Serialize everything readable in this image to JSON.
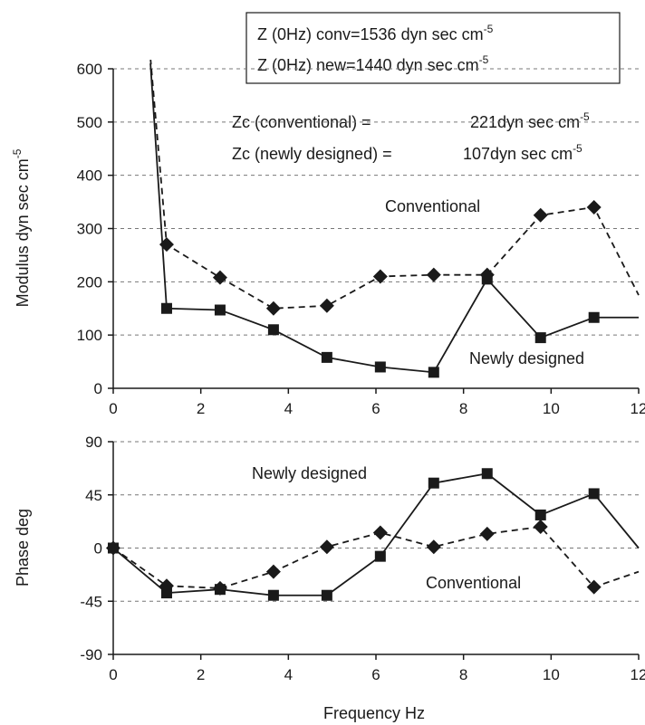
{
  "colors": {
    "ink": "#1a1a1a",
    "grid": "#777777"
  },
  "chart_data": [
    {
      "type": "line",
      "title": "",
      "xlabel": "",
      "ylabel": "Modulus dyn sec cm",
      "ylabel_sup": "-5",
      "xlim": [
        0,
        12
      ],
      "ylim": [
        0,
        600
      ],
      "xticks": [
        0,
        2,
        4,
        6,
        8,
        10,
        12
      ],
      "yticks": [
        0,
        100,
        200,
        300,
        400,
        500,
        600
      ],
      "grid": true,
      "legend_box": [
        {
          "text": "Z (0Hz) conv=1536 dyn sec cm",
          "sup": "-5"
        },
        {
          "text": "Z (0Hz) new=1440 dyn sec cm",
          "sup": "-5"
        }
      ],
      "annotations": [
        {
          "label": "Zc (conventional) =",
          "value": "221dyn sec cm",
          "sup": "-5"
        },
        {
          "label": "Zc (newly designed) =",
          "value": "107dyn sec cm",
          "sup": "-5"
        },
        {
          "text": "Conventional"
        },
        {
          "text": "Newly designed"
        }
      ],
      "series": [
        {
          "name": "Conventional",
          "style": "dashed",
          "marker": "diamond",
          "x": [
            0.85,
            1.22,
            2.44,
            3.66,
            4.88,
            6.1,
            7.32,
            8.54,
            9.76,
            10.98,
            12.0
          ],
          "y": [
            620,
            270,
            208,
            150,
            155,
            210,
            213,
            213,
            325,
            340,
            175
          ],
          "markers_at": [
            1.22,
            2.44,
            3.66,
            4.88,
            6.1,
            7.32,
            8.54,
            9.76,
            10.98
          ]
        },
        {
          "name": "Newly designed",
          "style": "solid",
          "marker": "square",
          "x": [
            0.85,
            1.22,
            2.44,
            3.66,
            4.88,
            6.1,
            7.32,
            8.54,
            9.76,
            10.98,
            12.0
          ],
          "y": [
            610,
            150,
            147,
            110,
            58,
            40,
            30,
            205,
            95,
            133,
            133
          ],
          "markers_at": [
            1.22,
            2.44,
            3.66,
            4.88,
            6.1,
            7.32,
            8.54,
            9.76,
            10.98
          ]
        }
      ]
    },
    {
      "type": "line",
      "title": "",
      "xlabel": "Frequency Hz",
      "ylabel": "Phase deg",
      "xlim": [
        0,
        12
      ],
      "ylim": [
        -90,
        90
      ],
      "xticks": [
        0,
        2,
        4,
        6,
        8,
        10,
        12
      ],
      "yticks": [
        -90,
        -45,
        0,
        45,
        90
      ],
      "grid": true,
      "annotations": [
        {
          "text": "Newly designed"
        },
        {
          "text": "Conventional"
        }
      ],
      "series": [
        {
          "name": "Newly designed",
          "style": "solid",
          "marker": "square",
          "x": [
            0,
            1.22,
            2.44,
            3.66,
            4.88,
            6.1,
            7.32,
            8.54,
            9.76,
            10.98,
            12.0
          ],
          "y": [
            0,
            -38,
            -35,
            -40,
            -40,
            -7,
            55,
            63,
            28,
            46,
            0
          ],
          "markers_at": [
            0,
            1.22,
            2.44,
            3.66,
            4.88,
            6.1,
            7.32,
            8.54,
            9.76,
            10.98
          ]
        },
        {
          "name": "Conventional",
          "style": "dashed",
          "marker": "diamond",
          "x": [
            0,
            1.22,
            2.44,
            3.66,
            4.88,
            6.1,
            7.32,
            8.54,
            9.76,
            10.98,
            12.0
          ],
          "y": [
            0,
            -32,
            -34,
            -20,
            1,
            13,
            1,
            12,
            18,
            -33,
            -20
          ],
          "markers_at": [
            0,
            1.22,
            2.44,
            3.66,
            4.88,
            6.1,
            7.32,
            8.54,
            9.76,
            10.98
          ]
        }
      ]
    }
  ]
}
